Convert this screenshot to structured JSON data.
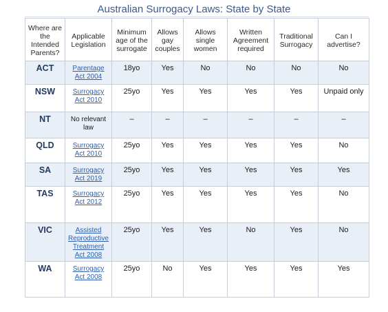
{
  "title": "Australian Surrogacy Laws: State by State",
  "headers": [
    "Where are the Intended Parents?",
    "Applicable Legislation",
    "Minimum age of the surrogate",
    "Allows gay couples",
    "Allows single women",
    "Written Agreement required",
    "Traditional Surrogacy",
    "Can I advertise?"
  ],
  "rows": [
    {
      "state": "ACT",
      "legislation": "Parentage Act 2004",
      "age": "18yo",
      "gay": "Yes",
      "single": "No",
      "written": "No",
      "traditional": "No",
      "advertise": "No"
    },
    {
      "state": "NSW",
      "legislation": "Surrogacy Act 2010",
      "age": "25yo",
      "gay": "Yes",
      "single": "Yes",
      "written": "Yes",
      "traditional": "Yes",
      "advertise": "Unpaid only"
    },
    {
      "state": "NT",
      "legislation": "No relevant law",
      "age": "–",
      "gay": "–",
      "single": "–",
      "written": "–",
      "traditional": "–",
      "advertise": "–"
    },
    {
      "state": "QLD",
      "legislation": "Surrogacy Act 2010",
      "age": "25yo",
      "gay": "Yes",
      "single": "Yes",
      "written": "Yes",
      "traditional": "Yes",
      "advertise": "No"
    },
    {
      "state": "SA",
      "legislation": "Surrogacy Act 2019",
      "age": "25yo",
      "gay": "Yes",
      "single": "Yes",
      "written": "Yes",
      "traditional": "Yes",
      "advertise": "Yes"
    },
    {
      "state": "TAS",
      "legislation": "Surrogacy Act 2012",
      "age": "25yo",
      "gay": "Yes",
      "single": "Yes",
      "written": "Yes",
      "traditional": "Yes",
      "advertise": "No"
    },
    {
      "state": "VIC",
      "legislation": "Assisted Reproductive Treatment Act 2008",
      "age": "25yo",
      "gay": "Yes",
      "single": "Yes",
      "written": "No",
      "traditional": "Yes",
      "advertise": "No"
    },
    {
      "state": "WA",
      "legislation": "Surrogacy Act 2008",
      "age": "25yo",
      "gay": "No",
      "single": "Yes",
      "written": "Yes",
      "traditional": "Yes",
      "advertise": "Yes"
    }
  ]
}
